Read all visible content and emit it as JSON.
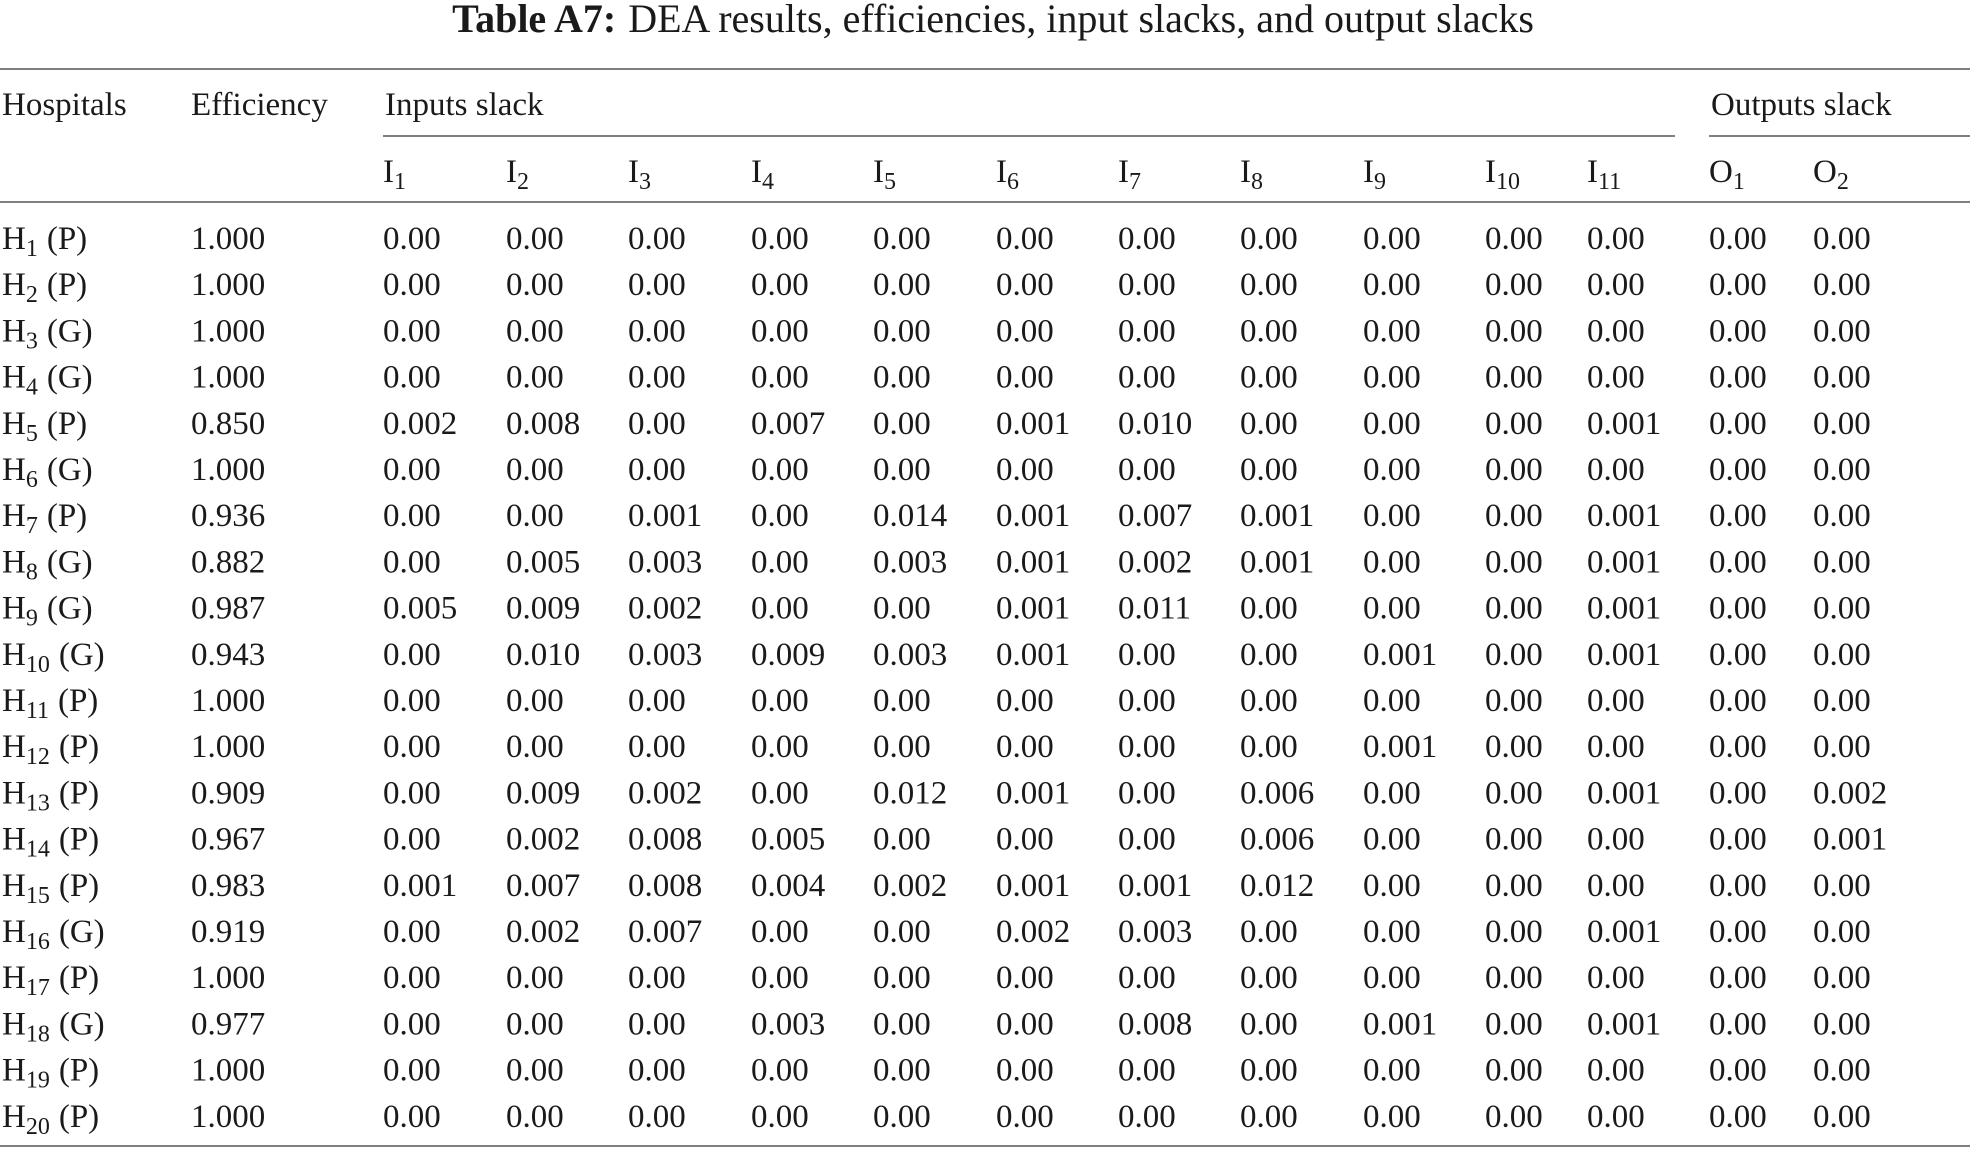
{
  "title": {
    "label": "Table A7:",
    "text": "DEA results, efficiencies, input slacks, and output slacks"
  },
  "header": {
    "hospitals": "Hospitals",
    "efficiency": "Efficiency",
    "inputs_group": "Inputs slack",
    "outputs_group": "Outputs slack",
    "inputs": [
      {
        "letter": "I",
        "sub": "1"
      },
      {
        "letter": "I",
        "sub": "2"
      },
      {
        "letter": "I",
        "sub": "3"
      },
      {
        "letter": "I",
        "sub": "4"
      },
      {
        "letter": "I",
        "sub": "5"
      },
      {
        "letter": "I",
        "sub": "6"
      },
      {
        "letter": "I",
        "sub": "7"
      },
      {
        "letter": "I",
        "sub": "8"
      },
      {
        "letter": "I",
        "sub": "9"
      },
      {
        "letter": "I",
        "sub": "10"
      },
      {
        "letter": "I",
        "sub": "11"
      }
    ],
    "outputs": [
      {
        "letter": "O",
        "sub": "1"
      },
      {
        "letter": "O",
        "sub": "2"
      }
    ]
  },
  "table": {
    "rows": [
      {
        "hospital": {
          "letter": "H",
          "sub": "1",
          "type": "(P)"
        },
        "efficiency": "1.000",
        "inputs": [
          "0.00",
          "0.00",
          "0.00",
          "0.00",
          "0.00",
          "0.00",
          "0.00",
          "0.00",
          "0.00",
          "0.00",
          "0.00"
        ],
        "outputs": [
          "0.00",
          "0.00"
        ]
      },
      {
        "hospital": {
          "letter": "H",
          "sub": "2",
          "type": "(P)"
        },
        "efficiency": "1.000",
        "inputs": [
          "0.00",
          "0.00",
          "0.00",
          "0.00",
          "0.00",
          "0.00",
          "0.00",
          "0.00",
          "0.00",
          "0.00",
          "0.00"
        ],
        "outputs": [
          "0.00",
          "0.00"
        ]
      },
      {
        "hospital": {
          "letter": "H",
          "sub": "3",
          "type": "(G)"
        },
        "efficiency": "1.000",
        "inputs": [
          "0.00",
          "0.00",
          "0.00",
          "0.00",
          "0.00",
          "0.00",
          "0.00",
          "0.00",
          "0.00",
          "0.00",
          "0.00"
        ],
        "outputs": [
          "0.00",
          "0.00"
        ]
      },
      {
        "hospital": {
          "letter": "H",
          "sub": "4",
          "type": "(G)"
        },
        "efficiency": "1.000",
        "inputs": [
          "0.00",
          "0.00",
          "0.00",
          "0.00",
          "0.00",
          "0.00",
          "0.00",
          "0.00",
          "0.00",
          "0.00",
          "0.00"
        ],
        "outputs": [
          "0.00",
          "0.00"
        ]
      },
      {
        "hospital": {
          "letter": "H",
          "sub": "5",
          "type": "(P)"
        },
        "efficiency": "0.850",
        "inputs": [
          "0.002",
          "0.008",
          "0.00",
          "0.007",
          "0.00",
          "0.001",
          "0.010",
          "0.00",
          "0.00",
          "0.00",
          "0.001"
        ],
        "outputs": [
          "0.00",
          "0.00"
        ]
      },
      {
        "hospital": {
          "letter": "H",
          "sub": "6",
          "type": "(G)"
        },
        "efficiency": "1.000",
        "inputs": [
          "0.00",
          "0.00",
          "0.00",
          "0.00",
          "0.00",
          "0.00",
          "0.00",
          "0.00",
          "0.00",
          "0.00",
          "0.00"
        ],
        "outputs": [
          "0.00",
          "0.00"
        ]
      },
      {
        "hospital": {
          "letter": "H",
          "sub": "7",
          "type": "(P)"
        },
        "efficiency": "0.936",
        "inputs": [
          "0.00",
          "0.00",
          "0.001",
          "0.00",
          "0.014",
          "0.001",
          "0.007",
          "0.001",
          "0.00",
          "0.00",
          "0.001"
        ],
        "outputs": [
          "0.00",
          "0.00"
        ]
      },
      {
        "hospital": {
          "letter": "H",
          "sub": "8",
          "type": "(G)"
        },
        "efficiency": "0.882",
        "inputs": [
          "0.00",
          "0.005",
          "0.003",
          "0.00",
          "0.003",
          "0.001",
          "0.002",
          "0.001",
          "0.00",
          "0.00",
          "0.001"
        ],
        "outputs": [
          "0.00",
          "0.00"
        ]
      },
      {
        "hospital": {
          "letter": "H",
          "sub": "9",
          "type": "(G)"
        },
        "efficiency": "0.987",
        "inputs": [
          "0.005",
          "0.009",
          "0.002",
          "0.00",
          "0.00",
          "0.001",
          "0.011",
          "0.00",
          "0.00",
          "0.00",
          "0.001"
        ],
        "outputs": [
          "0.00",
          "0.00"
        ]
      },
      {
        "hospital": {
          "letter": "H",
          "sub": "10",
          "type": "(G)"
        },
        "efficiency": "0.943",
        "inputs": [
          "0.00",
          "0.010",
          "0.003",
          "0.009",
          "0.003",
          "0.001",
          "0.00",
          "0.00",
          "0.001",
          "0.00",
          "0.001"
        ],
        "outputs": [
          "0.00",
          "0.00"
        ]
      },
      {
        "hospital": {
          "letter": "H",
          "sub": "11",
          "type": "(P)"
        },
        "efficiency": "1.000",
        "inputs": [
          "0.00",
          "0.00",
          "0.00",
          "0.00",
          "0.00",
          "0.00",
          "0.00",
          "0.00",
          "0.00",
          "0.00",
          "0.00"
        ],
        "outputs": [
          "0.00",
          "0.00"
        ]
      },
      {
        "hospital": {
          "letter": "H",
          "sub": "12",
          "type": "(P)"
        },
        "efficiency": "1.000",
        "inputs": [
          "0.00",
          "0.00",
          "0.00",
          "0.00",
          "0.00",
          "0.00",
          "0.00",
          "0.00",
          "0.001",
          "0.00",
          "0.00"
        ],
        "outputs": [
          "0.00",
          "0.00"
        ]
      },
      {
        "hospital": {
          "letter": "H",
          "sub": "13",
          "type": "(P)"
        },
        "efficiency": "0.909",
        "inputs": [
          "0.00",
          "0.009",
          "0.002",
          "0.00",
          "0.012",
          "0.001",
          "0.00",
          "0.006",
          "0.00",
          "0.00",
          "0.001"
        ],
        "outputs": [
          "0.00",
          "0.002"
        ]
      },
      {
        "hospital": {
          "letter": "H",
          "sub": "14",
          "type": "(P)"
        },
        "efficiency": "0.967",
        "inputs": [
          "0.00",
          "0.002",
          "0.008",
          "0.005",
          "0.00",
          "0.00",
          "0.00",
          "0.006",
          "0.00",
          "0.00",
          "0.00"
        ],
        "outputs": [
          "0.00",
          "0.001"
        ]
      },
      {
        "hospital": {
          "letter": "H",
          "sub": "15",
          "type": "(P)"
        },
        "efficiency": "0.983",
        "inputs": [
          "0.001",
          "0.007",
          "0.008",
          "0.004",
          "0.002",
          "0.001",
          "0.001",
          "0.012",
          "0.00",
          "0.00",
          "0.00"
        ],
        "outputs": [
          "0.00",
          "0.00"
        ]
      },
      {
        "hospital": {
          "letter": "H",
          "sub": "16",
          "type": "(G)"
        },
        "efficiency": "0.919",
        "inputs": [
          "0.00",
          "0.002",
          "0.007",
          "0.00",
          "0.00",
          "0.002",
          "0.003",
          "0.00",
          "0.00",
          "0.00",
          "0.001"
        ],
        "outputs": [
          "0.00",
          "0.00"
        ]
      },
      {
        "hospital": {
          "letter": "H",
          "sub": "17",
          "type": "(P)"
        },
        "efficiency": "1.000",
        "inputs": [
          "0.00",
          "0.00",
          "0.00",
          "0.00",
          "0.00",
          "0.00",
          "0.00",
          "0.00",
          "0.00",
          "0.00",
          "0.00"
        ],
        "outputs": [
          "0.00",
          "0.00"
        ]
      },
      {
        "hospital": {
          "letter": "H",
          "sub": "18",
          "type": "(G)"
        },
        "efficiency": "0.977",
        "inputs": [
          "0.00",
          "0.00",
          "0.00",
          "0.003",
          "0.00",
          "0.00",
          "0.008",
          "0.00",
          "0.001",
          "0.00",
          "0.001"
        ],
        "outputs": [
          "0.00",
          "0.00"
        ]
      },
      {
        "hospital": {
          "letter": "H",
          "sub": "19",
          "type": "(P)"
        },
        "efficiency": "1.000",
        "inputs": [
          "0.00",
          "0.00",
          "0.00",
          "0.00",
          "0.00",
          "0.00",
          "0.00",
          "0.00",
          "0.00",
          "0.00",
          "0.00"
        ],
        "outputs": [
          "0.00",
          "0.00"
        ]
      },
      {
        "hospital": {
          "letter": "H",
          "sub": "20",
          "type": "(P)"
        },
        "efficiency": "1.000",
        "inputs": [
          "0.00",
          "0.00",
          "0.00",
          "0.00",
          "0.00",
          "0.00",
          "0.00",
          "0.00",
          "0.00",
          "0.00",
          "0.00"
        ],
        "outputs": [
          "0.00",
          "0.00"
        ]
      }
    ]
  }
}
